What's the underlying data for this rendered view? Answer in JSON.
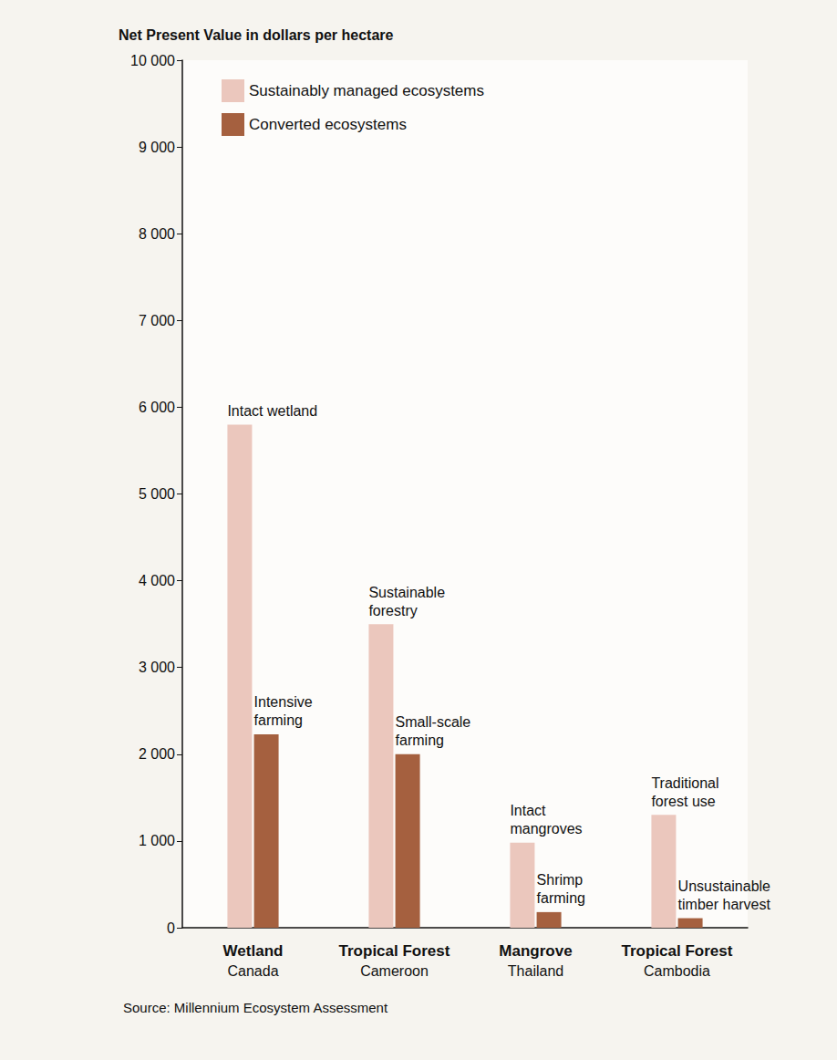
{
  "chart_data": {
    "type": "bar",
    "y_label": "Net Present Value in dollars per hectare",
    "source": "Source: Millennium Ecosystem Assessment",
    "categories": [
      "Wetland",
      "Tropical Forest",
      "Mangrove",
      "Tropical Forest"
    ],
    "category_sublabels": [
      "Canada",
      "Cameroon",
      "Thailand",
      "Cambodia"
    ],
    "series": [
      {
        "name": "Sustainably managed ecosystems",
        "color": "#ebc7bd",
        "values": [
          5800,
          3500,
          980,
          1300
        ],
        "bar_labels": [
          "Intact wetland",
          "Sustainable\nforestry",
          "Intact\nmangroves",
          "Traditional\nforest use"
        ]
      },
      {
        "name": "Converted ecosystems",
        "color": "#a5603f",
        "values": [
          2230,
          2000,
          180,
          110
        ],
        "bar_labels": [
          "Intensive\nfarming",
          "Small-scale\nfarming",
          "Shrimp\nfarming",
          "Unsustainable\ntimber harvest"
        ]
      }
    ],
    "ylim": [
      0,
      10000
    ],
    "yticks": [
      0,
      {
        "value": 1000,
        "label": "1 000"
      },
      {
        "value": 2000,
        "label": "2 000"
      },
      {
        "value": 3000,
        "label": "3 000"
      },
      {
        "value": 4000,
        "label": "4 000"
      },
      {
        "value": 5000,
        "label": "5 000"
      },
      {
        "value": 6000,
        "label": "6 000"
      },
      {
        "value": 7000,
        "label": "7 000"
      },
      {
        "value": 8000,
        "label": "8 000"
      },
      {
        "value": 9000,
        "label": "9 000"
      },
      {
        "value": 10000,
        "label": "10 000"
      }
    ],
    "grid": false,
    "legend": "top-left"
  }
}
